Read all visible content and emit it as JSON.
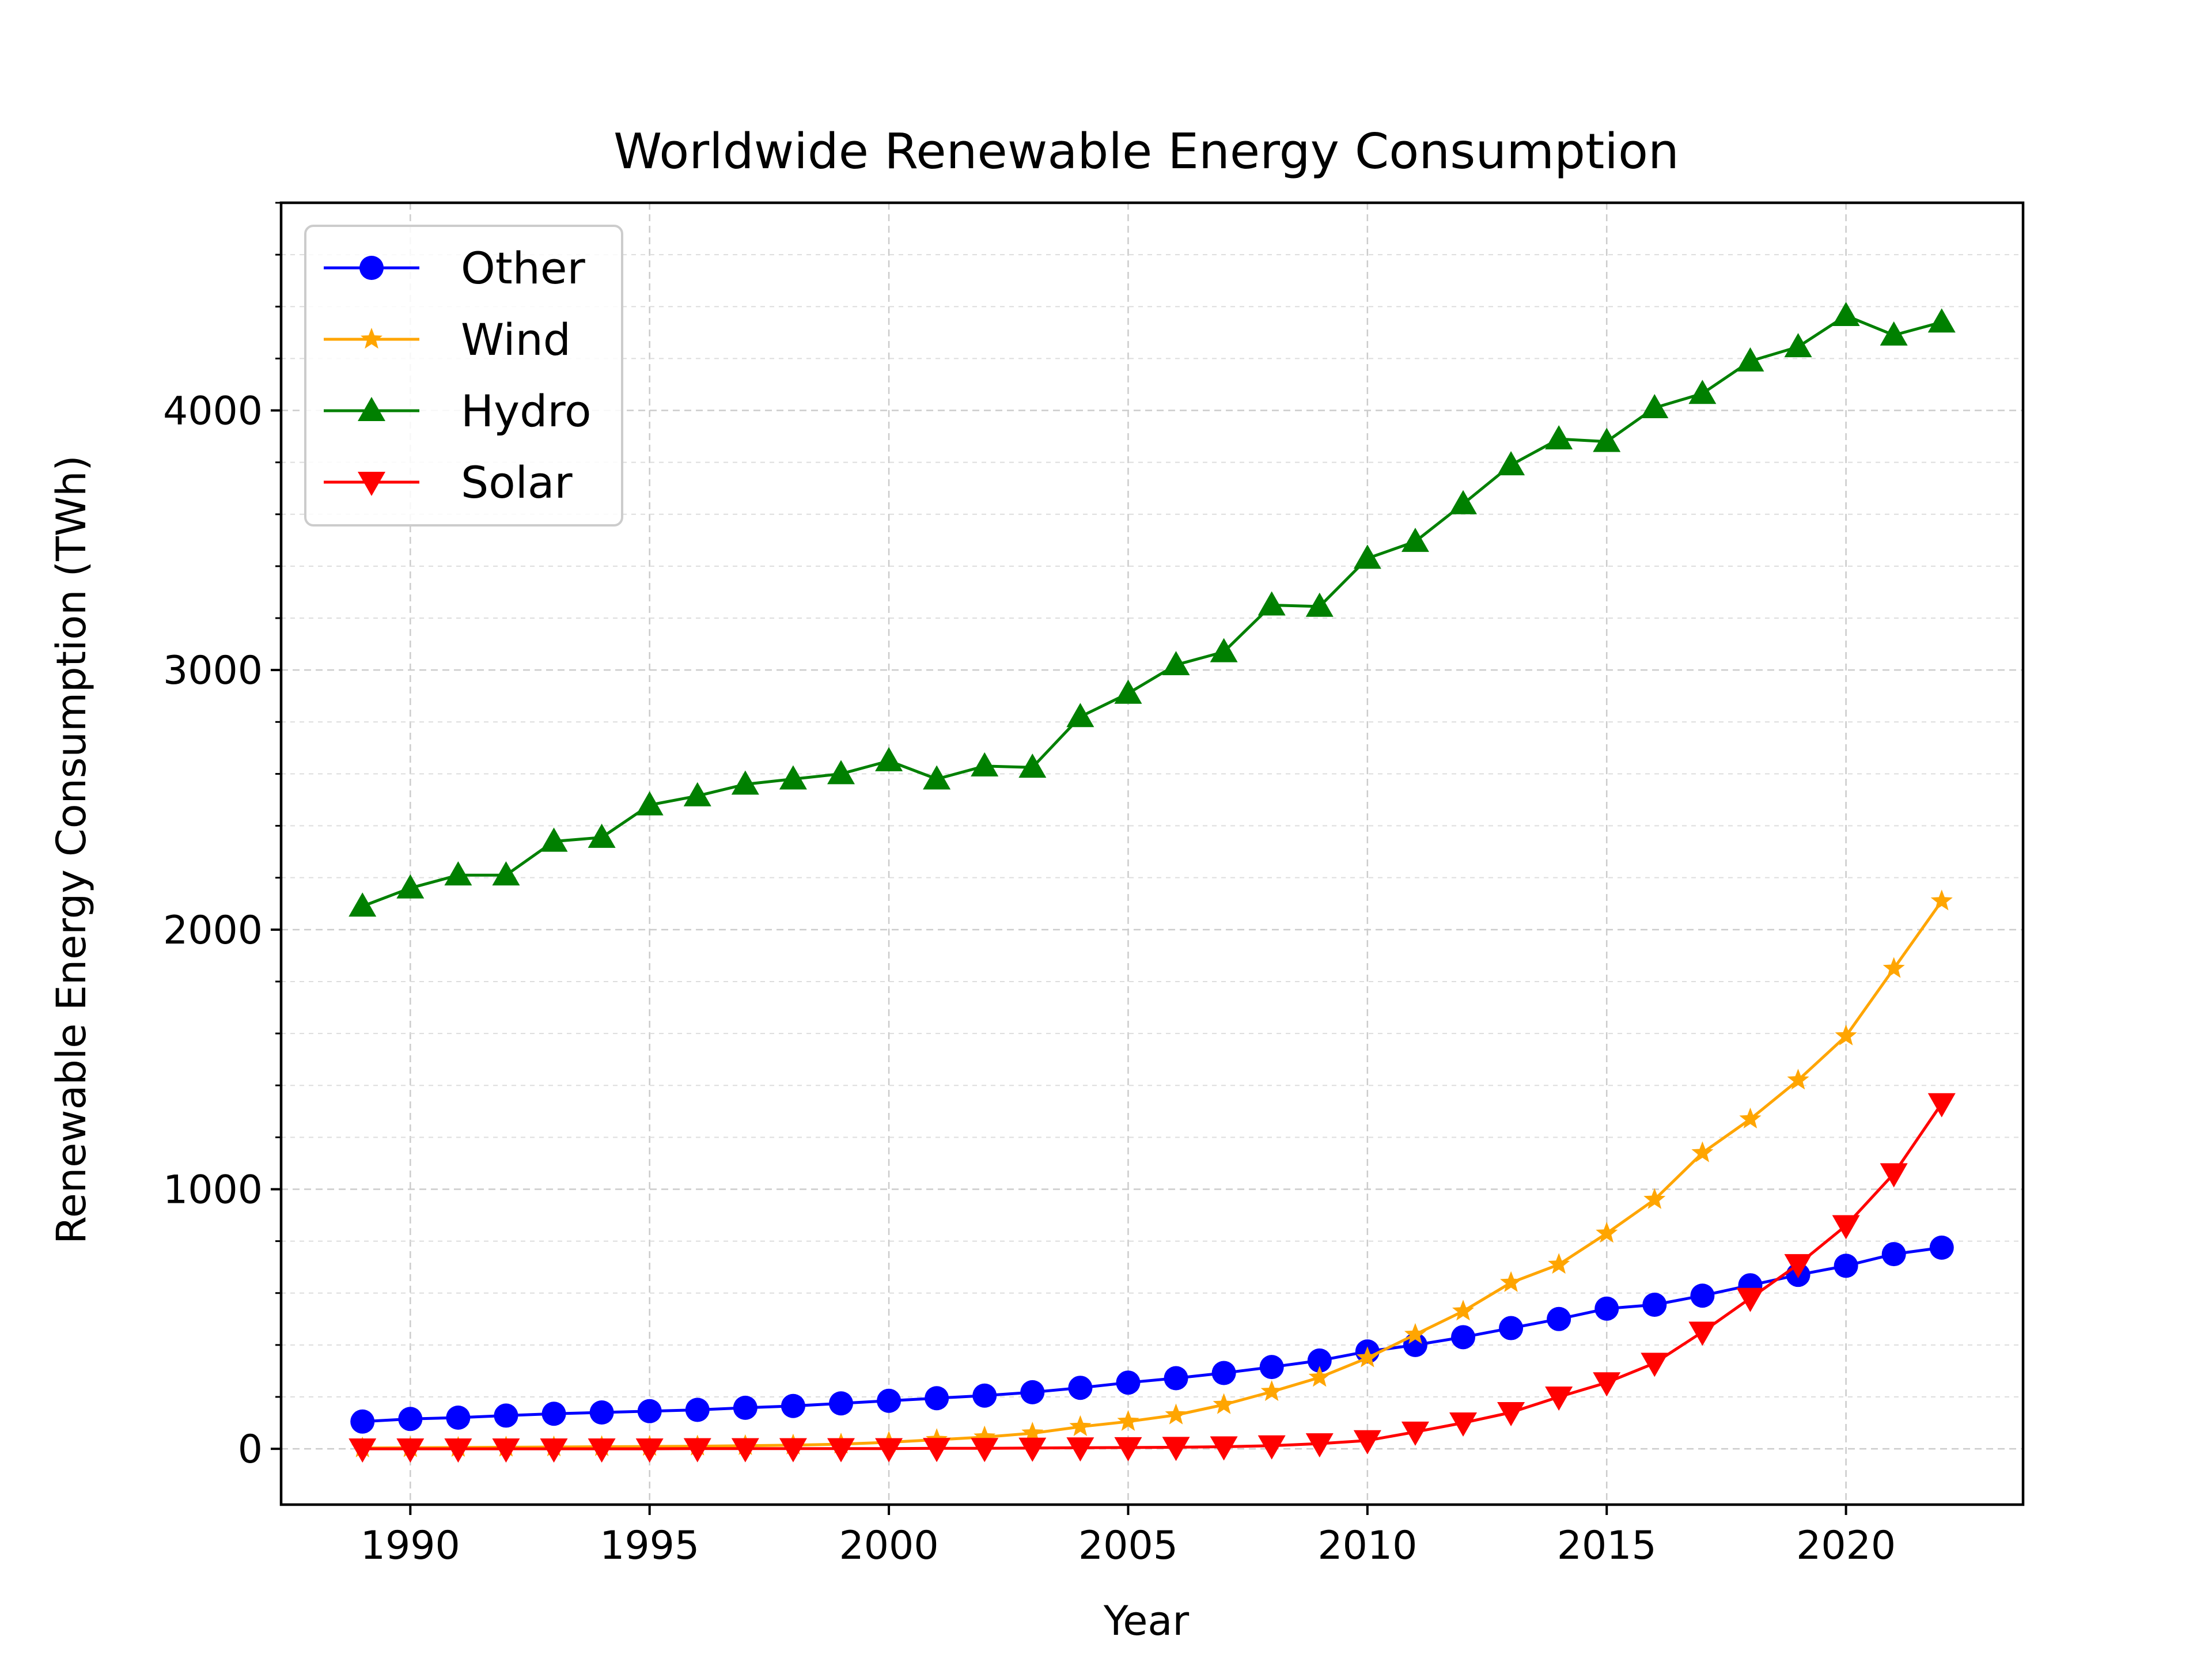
{
  "chart_data": {
    "type": "line",
    "title": "Worldwide Renewable Energy Consumption",
    "xlabel": "Year",
    "ylabel": "Renewable Energy Consumption (TWh)",
    "xlim": [
      1987.3,
      2023.7
    ],
    "ylim": [
      -215,
      4800
    ],
    "x_ticks": [
      1990,
      1995,
      2000,
      2005,
      2010,
      2015,
      2020
    ],
    "y_ticks": [
      0,
      1000,
      2000,
      3000,
      4000
    ],
    "y_minor_step": 200,
    "grid": true,
    "legend_position": "top-left",
    "x": [
      1989,
      1990,
      1991,
      1992,
      1993,
      1994,
      1995,
      1996,
      1997,
      1998,
      1999,
      2000,
      2001,
      2002,
      2003,
      2004,
      2005,
      2006,
      2007,
      2008,
      2009,
      2010,
      2011,
      2012,
      2013,
      2014,
      2015,
      2016,
      2017,
      2018,
      2019,
      2020,
      2021,
      2022
    ],
    "series": [
      {
        "name": "Other",
        "color": "#0000ff",
        "marker": "circle",
        "values": [
          105,
          115,
          120,
          128,
          135,
          140,
          145,
          150,
          158,
          165,
          175,
          185,
          195,
          205,
          218,
          235,
          255,
          272,
          292,
          315,
          340,
          375,
          400,
          430,
          465,
          500,
          540,
          555,
          590,
          630,
          670,
          705,
          750,
          775
        ]
      },
      {
        "name": "Wind",
        "color": "#ffa500",
        "marker": "star",
        "values": [
          3,
          4,
          5,
          6,
          7,
          8,
          9,
          10,
          12,
          14,
          18,
          25,
          35,
          45,
          60,
          85,
          105,
          130,
          170,
          220,
          275,
          350,
          440,
          530,
          640,
          710,
          830,
          960,
          1140,
          1270,
          1420,
          1590,
          1850,
          2110
        ]
      },
      {
        "name": "Hydro",
        "color": "#008000",
        "marker": "triangle-up",
        "values": [
          2090,
          2160,
          2210,
          2210,
          2340,
          2355,
          2480,
          2515,
          2560,
          2580,
          2600,
          2650,
          2580,
          2630,
          2625,
          2820,
          2910,
          3020,
          3070,
          3250,
          3245,
          3430,
          3495,
          3640,
          3790,
          3890,
          3880,
          4010,
          4065,
          4190,
          4245,
          4365,
          4290,
          4340
        ]
      },
      {
        "name": "Solar",
        "color": "#ff0000",
        "marker": "triangle-down",
        "values": [
          0,
          0,
          0,
          0,
          0,
          0,
          0,
          1,
          1,
          1,
          1,
          1,
          2,
          2,
          3,
          4,
          5,
          6,
          8,
          12,
          20,
          32,
          65,
          100,
          140,
          200,
          255,
          330,
          450,
          580,
          710,
          860,
          1060,
          1330
        ]
      }
    ]
  }
}
